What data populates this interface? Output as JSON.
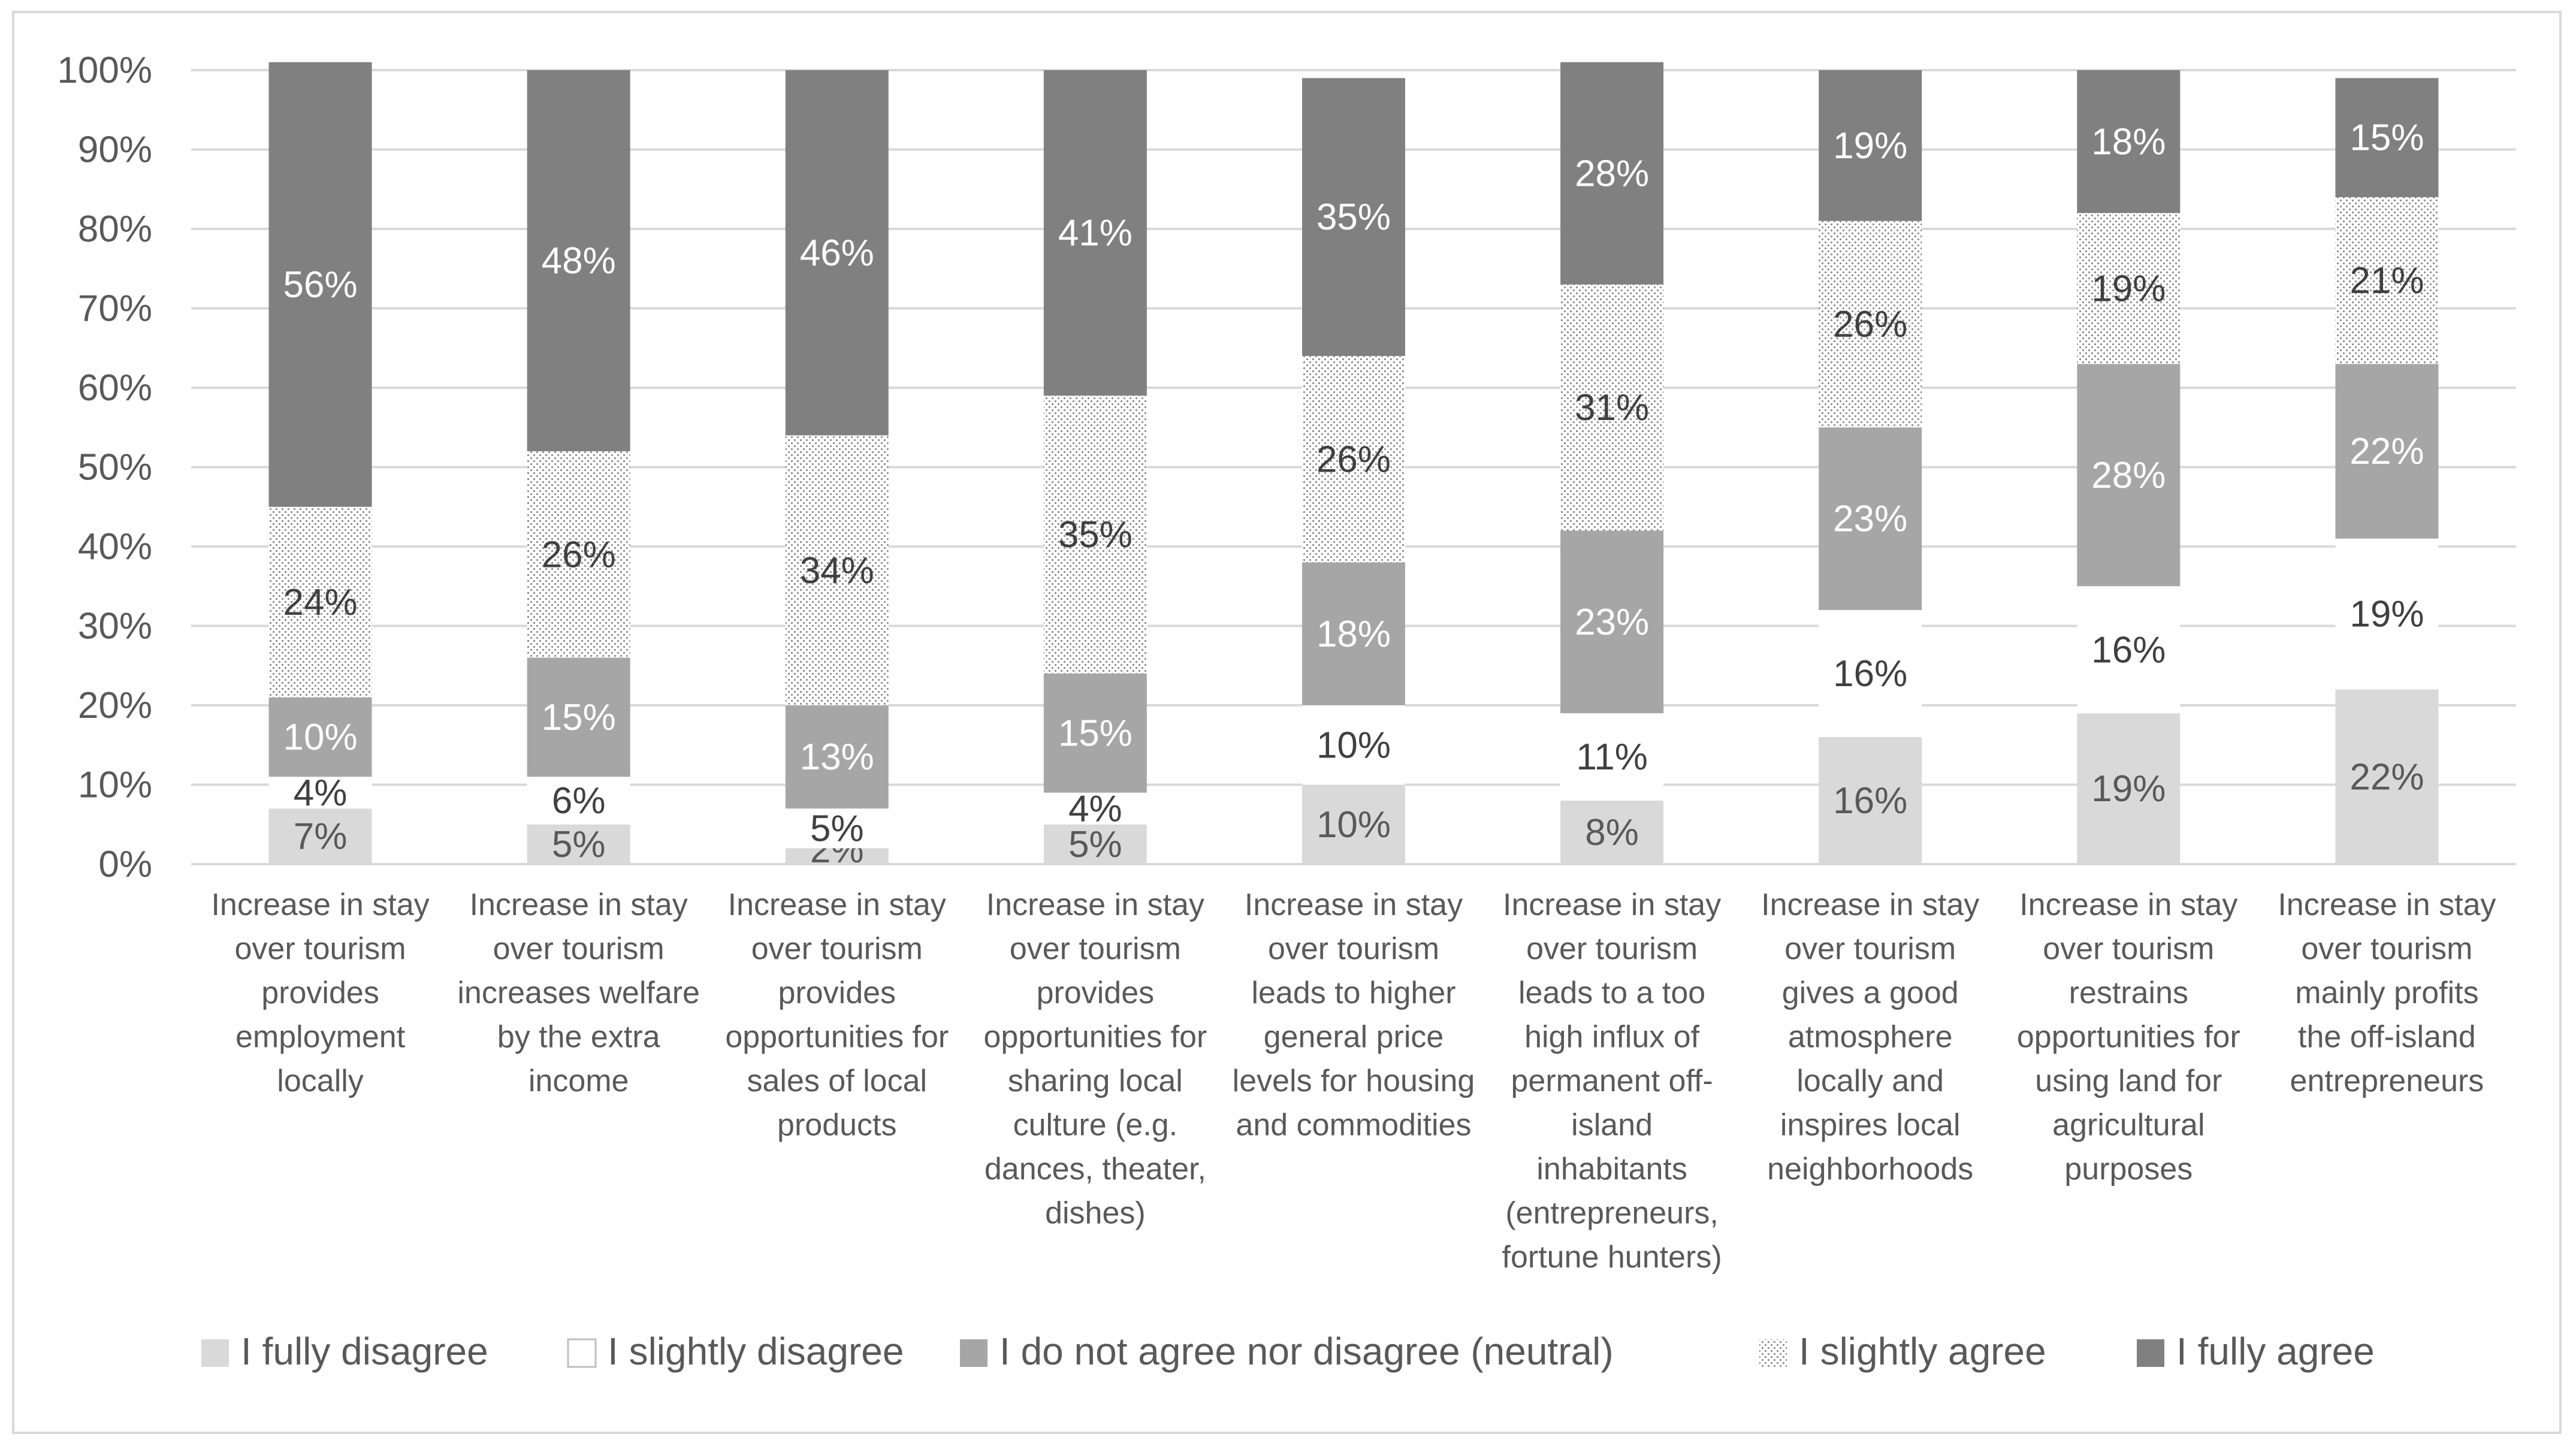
{
  "chart_data": {
    "type": "bar",
    "stacked": true,
    "percent": true,
    "ylim": [
      0,
      100
    ],
    "yticks": [
      "0%",
      "10%",
      "20%",
      "30%",
      "40%",
      "50%",
      "60%",
      "70%",
      "80%",
      "90%",
      "100%"
    ],
    "grid": true,
    "legend_position": "bottom",
    "categories": [
      [
        "Increase in stay",
        "over tourism",
        "provides",
        "employment",
        "locally"
      ],
      [
        "Increase in stay",
        "over tourism",
        "increases welfare",
        "by the extra",
        "income"
      ],
      [
        "Increase in stay",
        "over tourism",
        "provides",
        "opportunities for",
        "sales of local",
        "products"
      ],
      [
        "Increase in stay",
        "over tourism",
        "provides",
        "opportunities for",
        "sharing local",
        "culture (e.g.",
        "dances, theater,",
        "dishes)"
      ],
      [
        "Increase in stay",
        "over tourism",
        "leads to higher",
        "general price",
        "levels for housing",
        "and commodities"
      ],
      [
        "Increase in stay",
        "over tourism",
        "leads to a too",
        "high influx of",
        "permanent off-",
        "island",
        "inhabitants",
        "(entrepreneurs,",
        "fortune hunters)"
      ],
      [
        "Increase in stay",
        "over tourism",
        "gives a good",
        "atmosphere",
        "locally and",
        "inspires local",
        "neighborhoods"
      ],
      [
        "Increase in stay",
        "over tourism",
        "restrains",
        "opportunities for",
        "using land for",
        "agricultural",
        "purposes"
      ],
      [
        "Increase in stay",
        "over tourism",
        "mainly profits",
        "the off-island",
        "entrepreneurs"
      ]
    ],
    "series": [
      {
        "name": "I fully disagree",
        "color": "#d9d9d9",
        "pattern": "solid",
        "values": [
          7,
          5,
          2,
          5,
          10,
          8,
          16,
          19,
          22
        ],
        "labels": [
          "7%",
          "5%",
          "2%",
          "5%",
          "10%",
          "8%",
          "16%",
          "19%",
          "22%"
        ]
      },
      {
        "name": "I slightly disagree",
        "color": "#ffffff",
        "pattern": "solid",
        "values": [
          4,
          6,
          5,
          4,
          10,
          11,
          16,
          16,
          19
        ],
        "labels": [
          "4%",
          "6%",
          "5%",
          "4%",
          "10%",
          "11%",
          "16%",
          "16%",
          "19%"
        ]
      },
      {
        "name": "I do not agree nor disagree (neutral)",
        "color": "#a6a6a6",
        "pattern": "solid",
        "values": [
          10,
          15,
          13,
          15,
          18,
          23,
          23,
          28,
          22
        ],
        "labels": [
          "10%",
          "15%",
          "13%",
          "15%",
          "18%",
          "23%",
          "23%",
          "28%",
          "22%"
        ]
      },
      {
        "name": "I slightly agree",
        "color": "#ffffff",
        "pattern": "dots",
        "values": [
          24,
          26,
          34,
          35,
          26,
          31,
          26,
          19,
          21
        ],
        "labels": [
          "24%",
          "26%",
          "34%",
          "35%",
          "26%",
          "31%",
          "26%",
          "19%",
          "21%"
        ]
      },
      {
        "name": "I fully agree",
        "color": "#808080",
        "pattern": "solid",
        "values": [
          56,
          48,
          46,
          41,
          35,
          28,
          19,
          18,
          15
        ],
        "labels": [
          "56%",
          "48%",
          "46%",
          "41%",
          "35%",
          "28%",
          "19%",
          "18%",
          "15%"
        ]
      }
    ],
    "label_colors": [
      "#595959",
      "#404040",
      "#ffffff",
      "#404040",
      "#ffffff"
    ]
  }
}
